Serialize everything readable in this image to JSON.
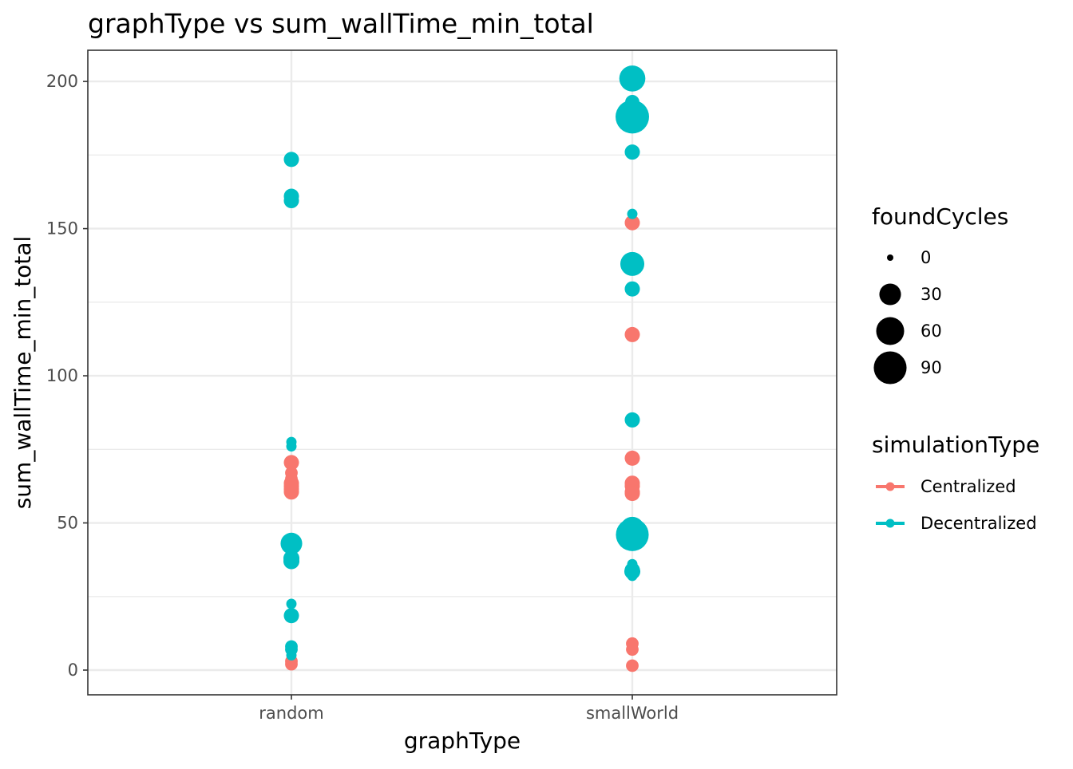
{
  "chart_data": {
    "type": "scatter",
    "title": "graphType  vs  sum_wallTime_min_total",
    "xlabel": "graphType",
    "ylabel": "sum_wallTime_min_total",
    "categories": [
      "random",
      "smallWorld"
    ],
    "ylim": [
      -8.4,
      210.6
    ],
    "yticks": [
      0,
      50,
      100,
      150,
      200
    ],
    "grid": true,
    "legend_position": "right",
    "size_legend": {
      "title": "foundCycles",
      "values": [
        0,
        30,
        60,
        90
      ]
    },
    "color_legend": {
      "title": "simulationType",
      "entries": [
        {
          "label": "Centralized",
          "color": "#F8766D"
        },
        {
          "label": "Decentralized",
          "color": "#00BFC4"
        }
      ]
    },
    "series": [
      {
        "name": "Centralized",
        "color": "#F8766D",
        "points": [
          {
            "x": "random",
            "y": 70.5,
            "size": 10
          },
          {
            "x": "random",
            "y": 67.0,
            "size": 5
          },
          {
            "x": "random",
            "y": 65.0,
            "size": 5
          },
          {
            "x": "random",
            "y": 63.5,
            "size": 10
          },
          {
            "x": "random",
            "y": 62.5,
            "size": 10
          },
          {
            "x": "random",
            "y": 61.5,
            "size": 10
          },
          {
            "x": "random",
            "y": 60.5,
            "size": 10
          },
          {
            "x": "random",
            "y": 3.0,
            "size": 5
          },
          {
            "x": "random",
            "y": 2.0,
            "size": 5
          },
          {
            "x": "smallWorld",
            "y": 152.0,
            "size": 10
          },
          {
            "x": "smallWorld",
            "y": 114.0,
            "size": 10
          },
          {
            "x": "smallWorld",
            "y": 72.0,
            "size": 10
          },
          {
            "x": "smallWorld",
            "y": 63.5,
            "size": 10
          },
          {
            "x": "smallWorld",
            "y": 62.5,
            "size": 10
          },
          {
            "x": "smallWorld",
            "y": 60.5,
            "size": 10
          },
          {
            "x": "smallWorld",
            "y": 60.0,
            "size": 10
          },
          {
            "x": "smallWorld",
            "y": 9.0,
            "size": 5
          },
          {
            "x": "smallWorld",
            "y": 7.0,
            "size": 5
          },
          {
            "x": "smallWorld",
            "y": 1.5,
            "size": 5
          }
        ]
      },
      {
        "name": "Decentralized",
        "color": "#00BFC4",
        "points": [
          {
            "x": "random",
            "y": 173.5,
            "size": 10
          },
          {
            "x": "random",
            "y": 161.0,
            "size": 10
          },
          {
            "x": "random",
            "y": 159.5,
            "size": 10
          },
          {
            "x": "random",
            "y": 77.5,
            "size": 2
          },
          {
            "x": "random",
            "y": 76.0,
            "size": 2
          },
          {
            "x": "random",
            "y": 43.0,
            "size": 30
          },
          {
            "x": "random",
            "y": 38.0,
            "size": 12
          },
          {
            "x": "random",
            "y": 37.0,
            "size": 12
          },
          {
            "x": "random",
            "y": 22.5,
            "size": 2
          },
          {
            "x": "random",
            "y": 18.5,
            "size": 10
          },
          {
            "x": "random",
            "y": 8.0,
            "size": 5
          },
          {
            "x": "random",
            "y": 7.0,
            "size": 5
          },
          {
            "x": "random",
            "y": 5.0,
            "size": 2
          },
          {
            "x": "smallWorld",
            "y": 201.0,
            "size": 50
          },
          {
            "x": "smallWorld",
            "y": 193.0,
            "size": 8
          },
          {
            "x": "smallWorld",
            "y": 191.0,
            "size": 8
          },
          {
            "x": "smallWorld",
            "y": 188.0,
            "size": 95
          },
          {
            "x": "smallWorld",
            "y": 176.0,
            "size": 10
          },
          {
            "x": "smallWorld",
            "y": 155.0,
            "size": 2
          },
          {
            "x": "smallWorld",
            "y": 138.0,
            "size": 40
          },
          {
            "x": "smallWorld",
            "y": 129.5,
            "size": 10
          },
          {
            "x": "smallWorld",
            "y": 85.0,
            "size": 10
          },
          {
            "x": "smallWorld",
            "y": 48.0,
            "size": 40
          },
          {
            "x": "smallWorld",
            "y": 46.0,
            "size": 90
          },
          {
            "x": "smallWorld",
            "y": 36.0,
            "size": 2
          },
          {
            "x": "smallWorld",
            "y": 34.0,
            "size": 10
          },
          {
            "x": "smallWorld",
            "y": 33.5,
            "size": 12
          },
          {
            "x": "smallWorld",
            "y": 32.0,
            "size": 2
          }
        ]
      }
    ]
  }
}
